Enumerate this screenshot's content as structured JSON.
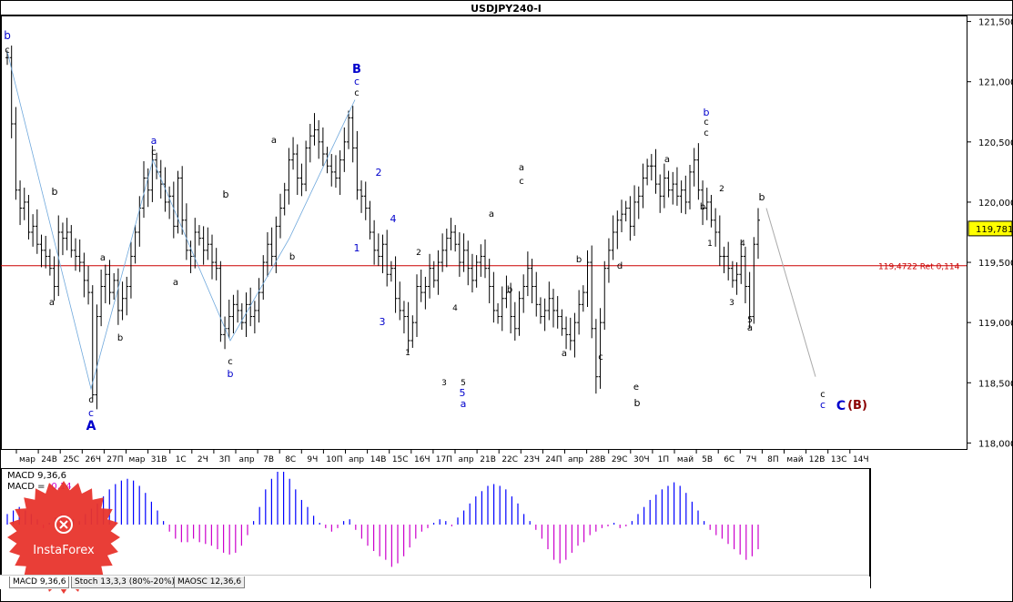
{
  "chart_data": {
    "type": "bar",
    "title": "USDJPY240-I",
    "y_axis": {
      "ylim": [
        117.95,
        121.55
      ],
      "ticks": [
        "121,500",
        "121,000",
        "120,500",
        "120,000",
        "119,500",
        "119,000",
        "118,500",
        "118,000"
      ],
      "tick_values": [
        121.5,
        121.0,
        120.5,
        120.0,
        119.5,
        119.0,
        118.5,
        118.0
      ]
    },
    "x_axis": {
      "ticks": [
        "мар",
        "24В",
        "25С",
        "26Ч",
        "27П",
        "мар",
        "31В",
        "1С",
        "2Ч",
        "3П",
        "апр",
        "7В",
        "8С",
        "9Ч",
        "10П",
        "апр",
        "14В",
        "15С",
        "16Ч",
        "17П",
        "апр",
        "21В",
        "22С",
        "23Ч",
        "24П",
        "апр",
        "28В",
        "29С",
        "30Ч",
        "1П",
        "май",
        "5В",
        "6С",
        "7Ч",
        "8П",
        "май",
        "12В",
        "13С",
        "14Ч"
      ]
    },
    "current_price": {
      "label": "119,781",
      "value": 119.781,
      "color": "#ffff00"
    },
    "horizontal_line": {
      "label": "119,4722 Ret 0,114",
      "value": 119.4722,
      "color": "#cc0000"
    },
    "price_bars_close": [
      121.2,
      120.65,
      120.1,
      119.95,
      120.0,
      119.75,
      119.8,
      119.65,
      119.6,
      119.55,
      119.45,
      119.3,
      119.75,
      119.7,
      119.75,
      119.6,
      119.55,
      119.5,
      119.35,
      119.25,
      118.4,
      119.05,
      119.3,
      119.4,
      119.25,
      119.35,
      119.1,
      119.2,
      119.3,
      119.55,
      119.75,
      119.95,
      120.2,
      120.1,
      120.35,
      120.25,
      120.15,
      120.0,
      120.05,
      119.8,
      120.2,
      119.85,
      119.6,
      119.55,
      119.75,
      119.7,
      119.6,
      119.65,
      119.5,
      119.45,
      118.9,
      118.95,
      119.05,
      119.15,
      119.1,
      119.0,
      119.15,
      119.05,
      119.1,
      119.25,
      119.5,
      119.65,
      119.55,
      119.8,
      119.95,
      120.1,
      120.35,
      120.4,
      120.2,
      120.15,
      120.45,
      120.55,
      120.6,
      120.5,
      120.4,
      120.3,
      120.25,
      120.2,
      120.35,
      120.5,
      120.7,
      120.45,
      120.1,
      120.05,
      119.95,
      119.75,
      119.6,
      119.55,
      119.65,
      119.4,
      119.45,
      119.2,
      119.1,
      119.05,
      118.85,
      119.0,
      119.3,
      119.25,
      119.3,
      119.45,
      119.35,
      119.5,
      119.6,
      119.7,
      119.75,
      119.65,
      119.5,
      119.6,
      119.45,
      119.35,
      119.5,
      119.55,
      119.45,
      119.3,
      119.1,
      119.05,
      119.2,
      119.25,
      119.05,
      118.95,
      119.2,
      119.3,
      119.45,
      119.3,
      119.15,
      119.05,
      119.1,
      119.2,
      119.1,
      119.05,
      118.95,
      118.9,
      118.85,
      119.0,
      119.15,
      119.25,
      119.5,
      118.95,
      118.55,
      119.0,
      119.45,
      119.6,
      119.75,
      119.85,
      119.9,
      119.95,
      119.8,
      120.0,
      120.05,
      120.2,
      120.3,
      120.3,
      120.15,
      120.05,
      120.2,
      120.1,
      120.15,
      120.05,
      120.1,
      120.0,
      120.25,
      120.35,
      120.1,
      119.95,
      120.0,
      119.85,
      119.75,
      119.55,
      119.55,
      119.45,
      119.35,
      119.4,
      119.55,
      119.3,
      119.05,
      119.65,
      119.85
    ],
    "annotations": [
      {
        "text": "b",
        "color": "#0000cc"
      },
      {
        "text": "c",
        "color": "#000000"
      },
      {
        "text": "b",
        "color": "#000000"
      },
      {
        "text": "a",
        "color": "#000000"
      },
      {
        "text": "a",
        "color": "#000000"
      },
      {
        "text": "b",
        "color": "#000000"
      },
      {
        "text": "c",
        "color": "#000000"
      },
      {
        "text": "c",
        "color": "#0000cc"
      },
      {
        "text": "A",
        "color": "#0000cc"
      },
      {
        "text": "a",
        "color": "#0000cc"
      },
      {
        "text": "c",
        "color": "#000000"
      },
      {
        "text": "a",
        "color": "#000000"
      },
      {
        "text": "b",
        "color": "#000000"
      },
      {
        "text": "c",
        "color": "#000000"
      },
      {
        "text": "b",
        "color": "#0000cc"
      },
      {
        "text": "a",
        "color": "#000000"
      },
      {
        "text": "b",
        "color": "#000000"
      },
      {
        "text": "B",
        "color": "#0000cc"
      },
      {
        "text": "c",
        "color": "#0000cc"
      },
      {
        "text": "c",
        "color": "#000000"
      },
      {
        "text": "1",
        "color": "#0000cc"
      },
      {
        "text": "2",
        "color": "#0000cc"
      },
      {
        "text": "3",
        "color": "#0000cc"
      },
      {
        "text": "4",
        "color": "#0000cc"
      },
      {
        "text": "1",
        "color": "#000000"
      },
      {
        "text": "2",
        "color": "#000000"
      },
      {
        "text": "3",
        "color": "#000000"
      },
      {
        "text": "4",
        "color": "#000000"
      },
      {
        "text": "5",
        "color": "#000000"
      },
      {
        "text": "5",
        "color": "#0000cc"
      },
      {
        "text": "a",
        "color": "#0000cc"
      },
      {
        "text": "a",
        "color": "#000000"
      },
      {
        "text": "b",
        "color": "#000000"
      },
      {
        "text": "c",
        "color": "#000000"
      },
      {
        "text": "a",
        "color": "#000000"
      },
      {
        "text": "a",
        "color": "#000000"
      },
      {
        "text": "b",
        "color": "#000000"
      },
      {
        "text": "c",
        "color": "#000000"
      },
      {
        "text": "d",
        "color": "#000000"
      },
      {
        "text": "e",
        "color": "#000000"
      },
      {
        "text": "b",
        "color": "#000000"
      },
      {
        "text": "a",
        "color": "#000000"
      },
      {
        "text": "b",
        "color": "#0000cc"
      },
      {
        "text": "c",
        "color": "#000000"
      },
      {
        "text": "c",
        "color": "#000000"
      },
      {
        "text": "b",
        "color": "#000000"
      },
      {
        "text": "1",
        "color": "#000000"
      },
      {
        "text": "2",
        "color": "#000000"
      },
      {
        "text": "3",
        "color": "#000000"
      },
      {
        "text": "4",
        "color": "#000000"
      },
      {
        "text": "5",
        "color": "#000000"
      },
      {
        "text": "a",
        "color": "#000000"
      },
      {
        "text": "b",
        "color": "#000000"
      },
      {
        "text": "c",
        "color": "#000000"
      },
      {
        "text": "c",
        "color": "#0000cc"
      },
      {
        "text": "C",
        "color": "#0000cc"
      },
      {
        "text": "(B)",
        "color": "#8b0000"
      }
    ],
    "macd_panel": {
      "label_line1": "MACD 9,36,6",
      "label_prefix": "MACD = ",
      "value_text": "-0,14",
      "positive_color": "#0000ff",
      "negative_color": "#cc00cc",
      "histogram": [
        0.06,
        0.08,
        0.1,
        0.08,
        0.06,
        0.03,
        -0.02,
        0.01,
        0.04,
        0.06,
        0.05,
        0.03,
        0.02,
        0.06,
        0.09,
        0.12,
        0.16,
        0.2,
        0.23,
        0.25,
        0.26,
        0.25,
        0.22,
        0.18,
        0.13,
        0.08,
        0.02,
        -0.04,
        -0.08,
        -0.1,
        -0.1,
        -0.08,
        -0.1,
        -0.11,
        -0.12,
        -0.14,
        -0.16,
        -0.17,
        -0.16,
        -0.12,
        -0.06,
        0.02,
        0.1,
        0.2,
        0.26,
        0.3,
        0.3,
        0.26,
        0.2,
        0.14,
        0.1,
        0.05,
        0.01,
        -0.02,
        -0.04,
        -0.02,
        0.02,
        0.03,
        -0.03,
        -0.08,
        -0.12,
        -0.15,
        -0.18,
        -0.2,
        -0.24,
        -0.22,
        -0.18,
        -0.13,
        -0.08,
        -0.04,
        -0.02,
        0.01,
        0.03,
        0.02,
        -0.01,
        0.04,
        0.08,
        0.12,
        0.16,
        0.19,
        0.22,
        0.23,
        0.22,
        0.2,
        0.16,
        0.12,
        0.06,
        0.02,
        -0.03,
        -0.08,
        -0.14,
        -0.2,
        -0.22,
        -0.2,
        -0.16,
        -0.12,
        -0.1,
        -0.06,
        -0.04,
        -0.02,
        -0.01,
        0.01,
        -0.02,
        -0.01,
        0.02,
        0.06,
        0.1,
        0.14,
        0.17,
        0.2,
        0.22,
        0.24,
        0.22,
        0.18,
        0.13,
        0.08,
        0.02,
        -0.03,
        -0.06,
        -0.08,
        -0.11,
        -0.14,
        -0.17,
        -0.2,
        -0.18,
        -0.14
      ],
      "ylim": [
        -0.3,
        0.3
      ]
    }
  },
  "tabs": [
    {
      "label": "MACD 9,36,6"
    },
    {
      "label": "Stoch 13,3,3 (80%-20%)"
    },
    {
      "label": "MAOSC 12,36,6"
    }
  ],
  "logo": {
    "text": "InstaForex",
    "color": "#e8342c"
  }
}
